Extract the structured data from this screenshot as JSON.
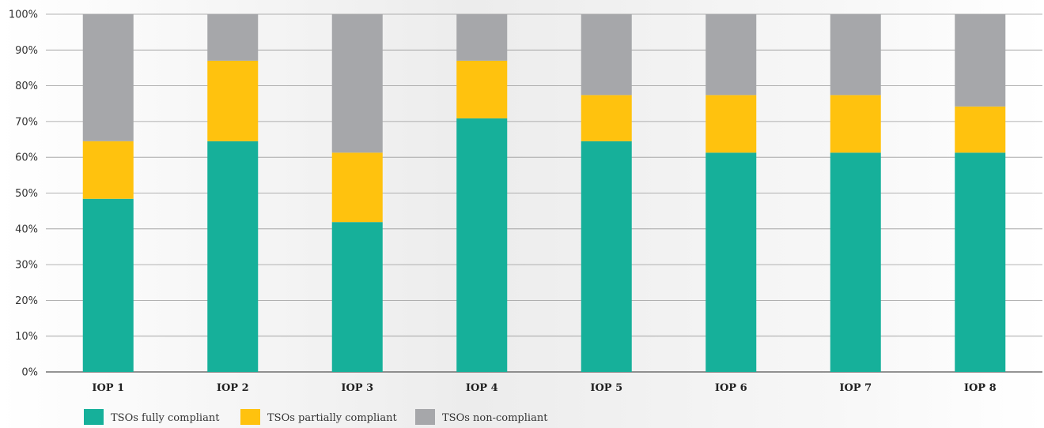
{
  "chart_data": {
    "type": "bar",
    "stacked": true,
    "categories": [
      "IOP 1",
      "IOP 2",
      "IOP 3",
      "IOP 4",
      "IOP 5",
      "IOP 6",
      "IOP 7",
      "IOP 8"
    ],
    "series": [
      {
        "name": "TSOs fully compliant",
        "color": "#16b09a",
        "values": [
          48.4,
          64.5,
          41.9,
          70.9,
          64.5,
          61.3,
          61.3,
          61.3
        ]
      },
      {
        "name": "TSOs partially compliant",
        "color": "#ffc20e",
        "values": [
          16.1,
          22.5,
          19.4,
          16.1,
          12.9,
          16.1,
          16.1,
          12.9
        ]
      },
      {
        "name": "TSOs non-compliant",
        "color": "#a6a7aa",
        "values": [
          35.5,
          13.0,
          38.7,
          13.0,
          22.6,
          22.6,
          22.6,
          25.8
        ]
      }
    ],
    "yticks": [
      "0%",
      "10%",
      "20%",
      "30%",
      "40%",
      "50%",
      "60%",
      "70%",
      "80%",
      "90%",
      "100%"
    ],
    "ylim": [
      0,
      100
    ],
    "grid": true,
    "legend_position": "bottom-left"
  }
}
